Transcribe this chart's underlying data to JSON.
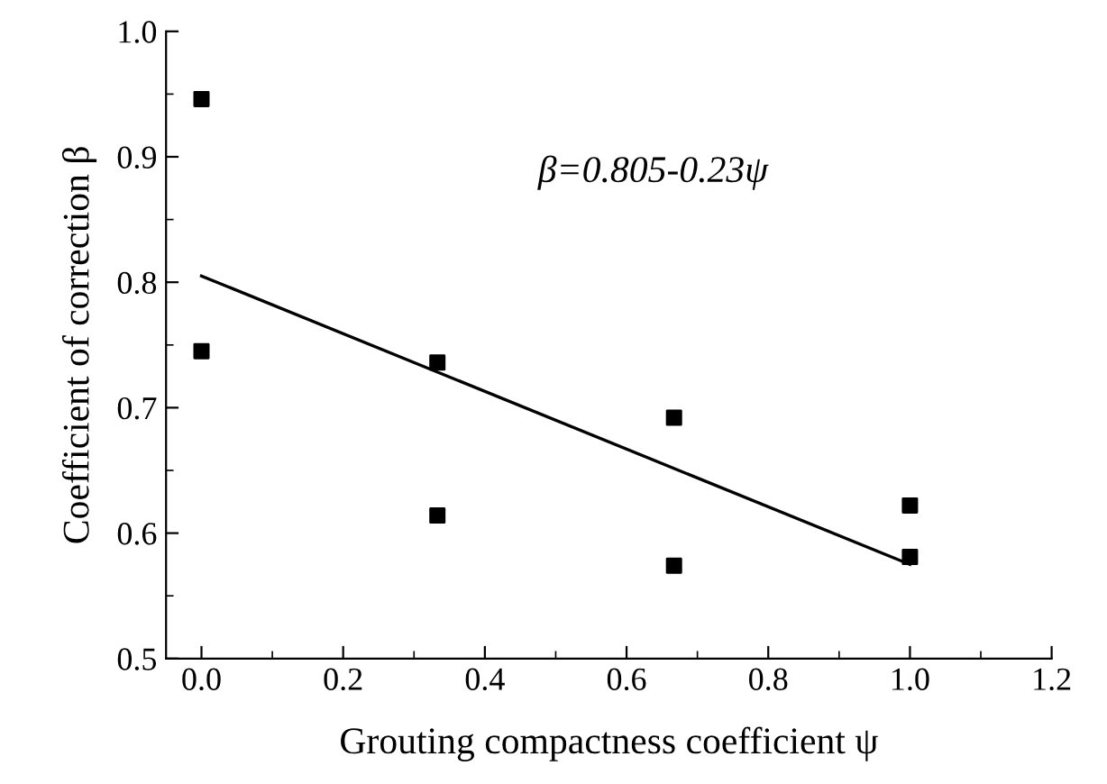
{
  "chart_data": {
    "type": "scatter",
    "xlabel": "Grouting compactness coefficient ψ",
    "ylabel": "Coefficient of correction β",
    "annotations": [
      "β=0.805-0.23ψ"
    ],
    "series": [
      {
        "color": "#000000",
        "marker": "square",
        "x": [
          0.0,
          0.0,
          0.333,
          0.333,
          0.667,
          0.667,
          1.0,
          1.0
        ],
        "values": [
          0.946,
          0.745,
          0.736,
          0.614,
          0.692,
          0.574,
          0.622,
          0.581
        ]
      },
      {
        "type": "line",
        "color": "#000000",
        "marker": "none",
        "line_style": "solid",
        "x": [
          0.0,
          1.0
        ],
        "values": [
          0.805,
          0.575
        ]
      }
    ],
    "xlim": [
      -0.05,
      1.2
    ],
    "ylim": [
      0.5,
      1.0
    ],
    "xticks": [
      {
        "value": 0,
        "label": "0.0"
      },
      0.2,
      0.4,
      0.6,
      0.8,
      {
        "value": 1,
        "label": "1.0"
      },
      1.2
    ],
    "yticks": [
      0.5,
      0.6,
      0.7,
      0.8,
      0.9,
      {
        "value": 1,
        "label": "1.0"
      }
    ],
    "grid": false,
    "legend": false
  }
}
